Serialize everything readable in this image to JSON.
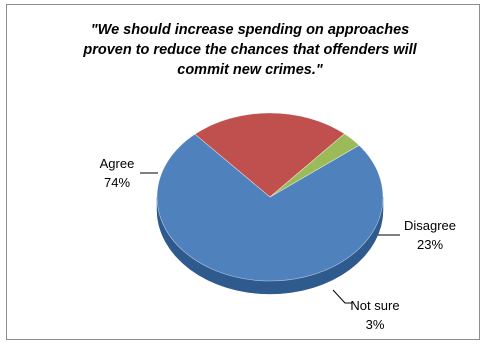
{
  "chart_data": {
    "type": "pie",
    "title": "\"We should increase spending on approaches proven to reduce the chances that offenders will commit new crimes.\"",
    "title_lines": [
      "\"We should increase spending on approaches",
      "proven to reduce the chances that offenders will",
      "commit new crimes.\""
    ],
    "style": "3d",
    "slices": [
      {
        "label": "Agree",
        "value": 74,
        "value_label": "74%",
        "color": "#4f81bd",
        "side_color": "#2f5a8e"
      },
      {
        "label": "Disagree",
        "value": 23,
        "value_label": "23%",
        "color": "#c0504d",
        "side_color": "#8e3532"
      },
      {
        "label": "Not sure",
        "value": 3,
        "value_label": "3%",
        "color": "#9bbb59",
        "side_color": "#6e8a38"
      }
    ],
    "legend": "none"
  }
}
